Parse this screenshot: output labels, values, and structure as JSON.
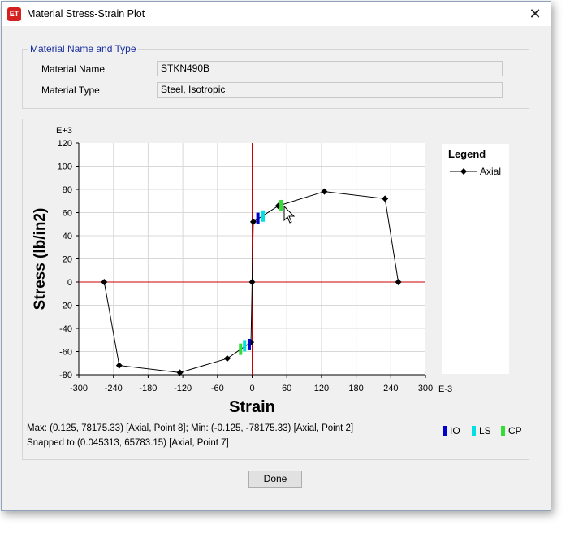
{
  "window": {
    "title": "Material Stress-Strain Plot",
    "icon_text": "ET",
    "close_glyph": "✕"
  },
  "material": {
    "group_title": "Material Name and Type",
    "name_label": "Material Name",
    "name_value": "STKN490B",
    "type_label": "Material Type",
    "type_value": "Steel, Isotropic"
  },
  "chart_data": {
    "type": "line",
    "xlabel": "Strain",
    "ylabel": "Stress (lb/in2)",
    "x_multiplier": "E-3",
    "y_multiplier": "E+3",
    "xlim": [
      -300,
      300
    ],
    "ylim": [
      -80,
      120
    ],
    "x_ticks": [
      -300,
      -240,
      -180,
      -120,
      -60,
      0,
      60,
      120,
      180,
      240,
      300
    ],
    "y_ticks": [
      120,
      100,
      80,
      60,
      40,
      20,
      0,
      -20,
      -40,
      -60,
      -80
    ],
    "grid": true,
    "series": [
      {
        "name": "Axial",
        "color": "#000000",
        "marker": "diamond",
        "points": [
          [
            -256,
            0
          ],
          [
            -230,
            -72
          ],
          [
            -125,
            -78.18
          ],
          [
            -43,
            -66
          ],
          [
            -2,
            -52
          ],
          [
            0,
            0
          ],
          [
            2,
            52
          ],
          [
            45.313,
            65.78
          ],
          [
            125,
            78.18
          ],
          [
            230,
            72
          ],
          [
            253,
            0
          ]
        ]
      }
    ],
    "performance_markers": [
      {
        "level": "IO",
        "color": "#0000cc",
        "x": 10,
        "y": 55
      },
      {
        "level": "LS",
        "color": "#00e0e0",
        "x": 19,
        "y": 57
      },
      {
        "level": "CP",
        "color": "#33dd33",
        "x": 50,
        "y": 66
      },
      {
        "level": "IO",
        "color": "#0000cc",
        "x": -5,
        "y": -54
      },
      {
        "level": "LS",
        "color": "#00e0e0",
        "x": -13,
        "y": -55
      },
      {
        "level": "CP",
        "color": "#33dd33",
        "x": -20,
        "y": -58
      }
    ],
    "legend": {
      "title": "Legend",
      "position": "right"
    }
  },
  "info": {
    "max_text": "Max: (0.125, 78175.33)   [Axial, Point 8];   Min: (-0.125, -78175.33)   [Axial, Point 2]",
    "snap_text": "Snapped to (0.045313, 65783.15)   [Axial, Point 7]"
  },
  "perf_legend": [
    {
      "label": "IO",
      "color": "#0000cc"
    },
    {
      "label": "LS",
      "color": "#00e0e0"
    },
    {
      "label": "CP",
      "color": "#33dd33"
    }
  ],
  "buttons": {
    "done": "Done"
  }
}
